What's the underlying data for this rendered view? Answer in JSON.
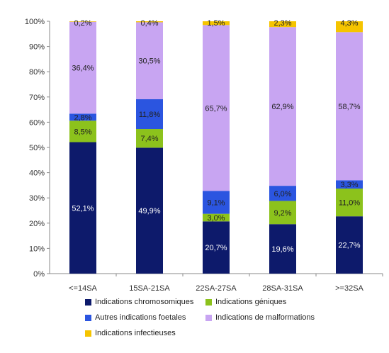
{
  "chart_data": {
    "type": "bar",
    "stacked": true,
    "title": "",
    "xlabel": "",
    "ylabel": "",
    "ylim": [
      0,
      100
    ],
    "y_ticks": [
      "0%",
      "10%",
      "20%",
      "30%",
      "40%",
      "50%",
      "60%",
      "70%",
      "80%",
      "90%",
      "100%"
    ],
    "grid": false,
    "legend_position": "bottom",
    "categories": [
      "<=14SA",
      "15SA-21SA",
      "22SA-27SA",
      "28SA-31SA",
      ">=32SA"
    ],
    "series": [
      {
        "name": "Indications chromosomiques",
        "color": "#0d1a6b",
        "label_color": "#ffffff",
        "values": [
          52.1,
          49.9,
          20.7,
          19.6,
          22.7
        ],
        "labels": [
          "52,1%",
          "49,9%",
          "20,7%",
          "19,6%",
          "22,7%"
        ]
      },
      {
        "name": "Indications géniques",
        "color": "#8cc21c",
        "label_color": "#222222",
        "values": [
          8.5,
          7.4,
          3.0,
          9.2,
          11.0
        ],
        "labels": [
          "8,5%",
          "7,4%",
          "3,0%",
          "9,2%",
          "11,0%"
        ]
      },
      {
        "name": "Autres indications foetales",
        "color": "#2b55e0",
        "label_color": "#222222",
        "values": [
          2.8,
          11.8,
          9.1,
          6.0,
          3.3
        ],
        "labels": [
          "2,8%",
          "11,8%",
          "9,1%",
          "6,0%",
          "3,3%"
        ]
      },
      {
        "name": "Indications de malformations",
        "color": "#c8a5f2",
        "label_color": "#222222",
        "values": [
          36.4,
          30.5,
          65.7,
          62.9,
          58.7
        ],
        "labels": [
          "36,4%",
          "30,5%",
          "65,7%",
          "62,9%",
          "58,7%"
        ]
      },
      {
        "name": "Indications infectieuses",
        "color": "#f5c400",
        "label_color": "#222222",
        "values": [
          0.2,
          0.4,
          1.5,
          2.3,
          4.3
        ],
        "labels": [
          "0,2%",
          "0,4%",
          "1,5%",
          "2,3%",
          "4,3%"
        ]
      }
    ]
  }
}
